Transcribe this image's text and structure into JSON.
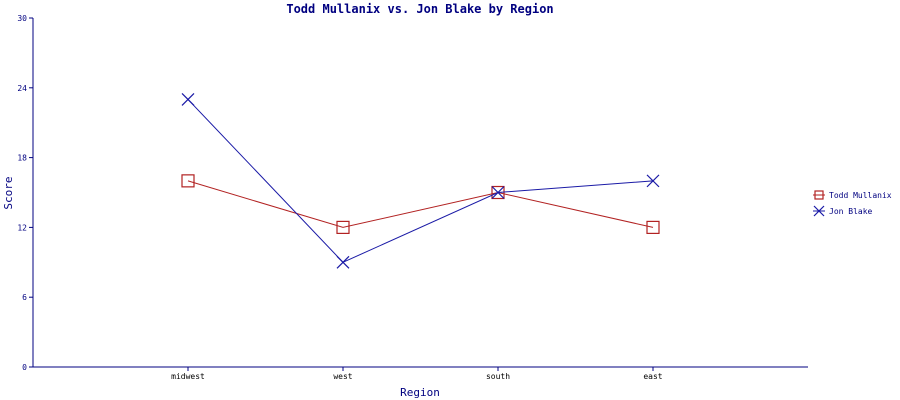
{
  "chart_data": {
    "type": "line",
    "title": "Todd Mullanix vs. Jon Blake by Region",
    "xlabel": "Region",
    "ylabel": "Score",
    "categories": [
      "midwest",
      "west",
      "south",
      "east"
    ],
    "ylim": [
      0,
      30
    ],
    "yticks": [
      "0",
      "6",
      "12",
      "18",
      "24",
      "30"
    ],
    "grid": false,
    "legend_position": "right",
    "series": [
      {
        "name": "Todd Mullanix",
        "values": [
          16,
          12,
          15,
          12
        ],
        "color": "#b22222",
        "marker": "square"
      },
      {
        "name": "Jon Blake",
        "values": [
          23,
          9,
          15,
          16
        ],
        "color": "#1a1aa6",
        "marker": "x"
      }
    ],
    "colors": {
      "axis": "#000080",
      "text": "#000080"
    }
  }
}
